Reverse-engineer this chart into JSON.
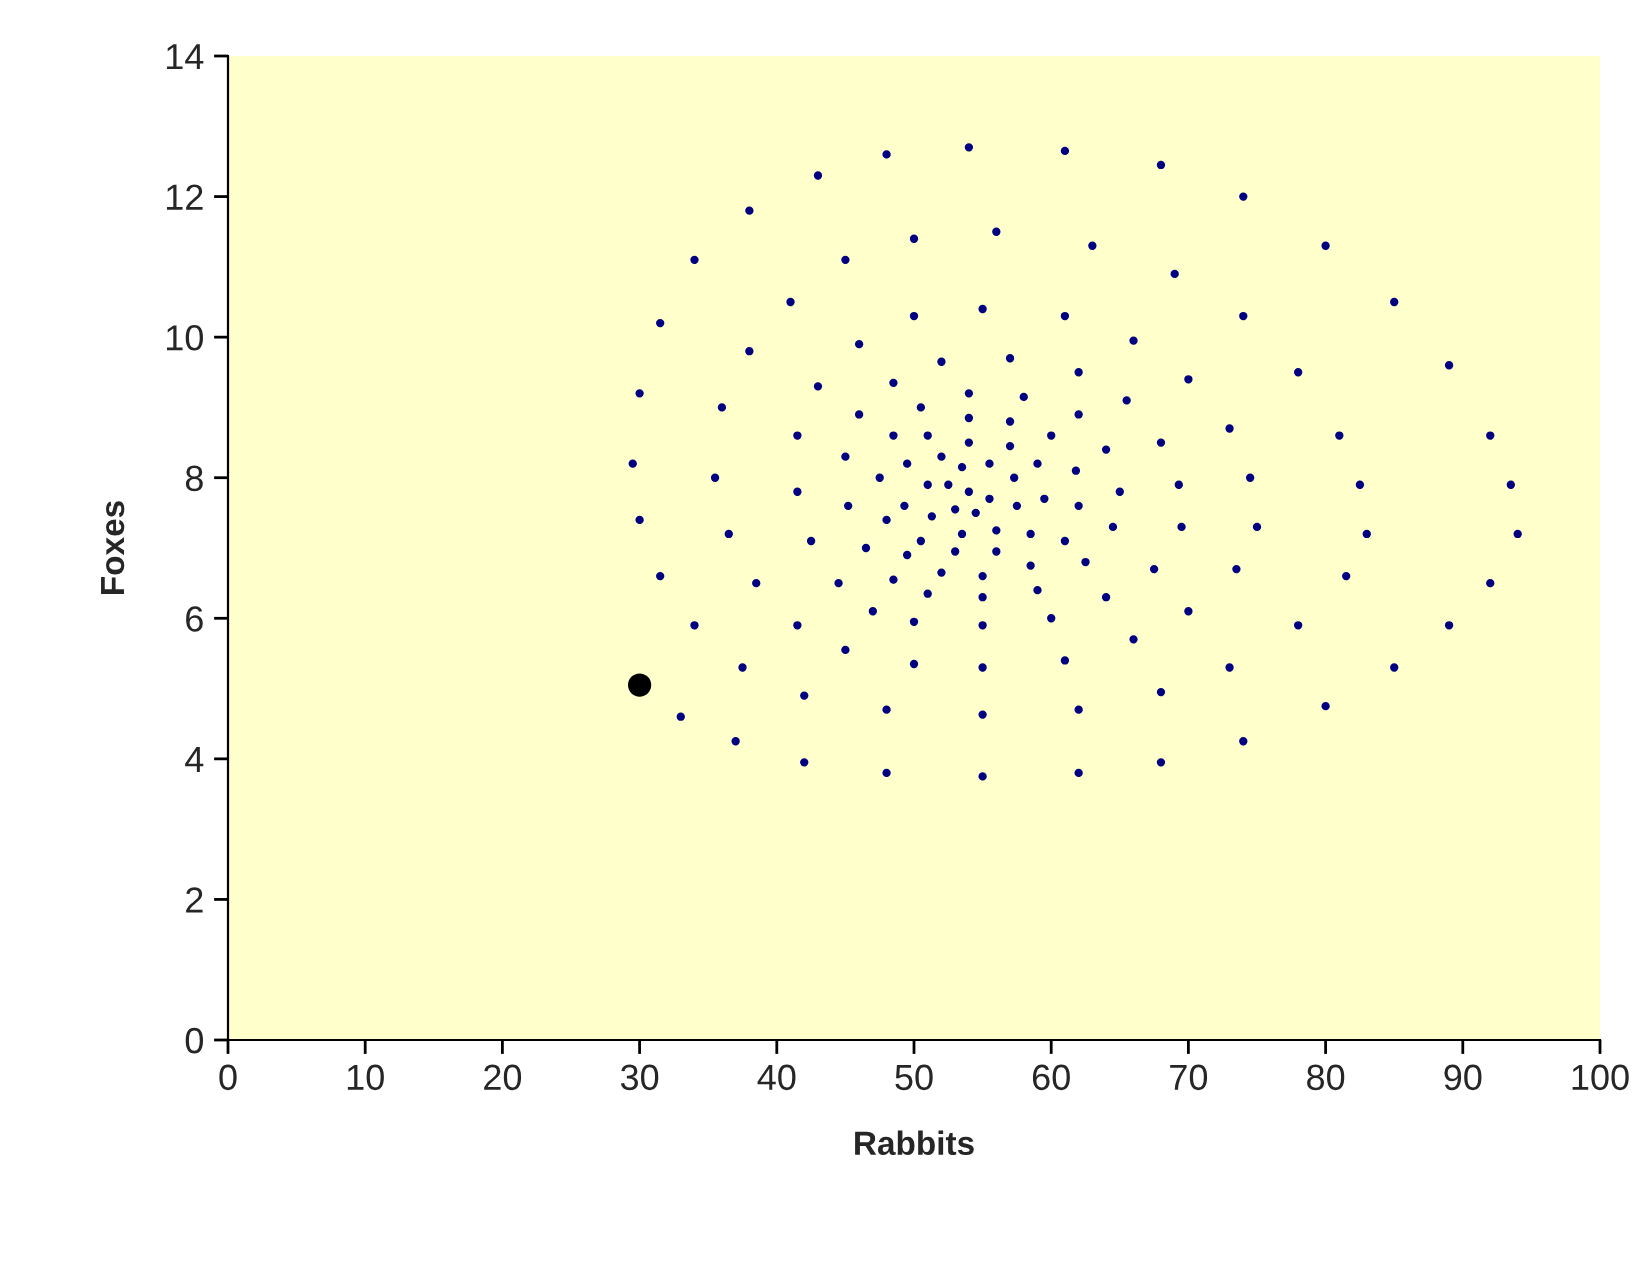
{
  "chart_data": {
    "type": "scatter",
    "xlabel": "Rabbits",
    "ylabel": "Foxes",
    "xlim": [
      0,
      100
    ],
    "xticks": [
      0,
      10,
      20,
      30,
      40,
      50,
      60,
      70,
      80,
      90,
      100
    ],
    "ylim": [
      0,
      14
    ],
    "yticks": [
      0,
      2,
      4,
      6,
      8,
      10,
      12,
      14
    ],
    "grid": false,
    "legend": false,
    "marker": "circle",
    "series": [
      {
        "color": "#000080",
        "x": [
          33,
          37,
          42,
          48,
          55,
          62,
          68,
          74,
          80,
          85,
          89,
          92,
          94,
          93.5,
          92,
          89,
          85,
          80,
          74,
          68,
          61,
          54,
          48,
          43,
          38,
          34,
          31.5,
          30,
          29.5,
          30,
          31.5,
          34,
          37.5,
          42,
          48,
          55,
          62,
          68,
          73,
          78,
          81.5,
          83,
          82.5,
          81,
          78,
          74,
          69,
          63,
          56,
          50,
          45,
          41,
          38,
          36,
          35.5,
          36.5,
          38.5,
          41.5,
          45,
          50,
          55,
          61,
          66,
          70,
          73.5,
          75,
          74.5,
          73,
          70,
          66,
          61,
          55,
          50,
          46,
          43,
          41.5,
          41.5,
          42.5,
          44.5,
          47,
          50,
          55,
          60,
          64,
          67.5,
          69.5,
          69.3,
          68,
          65.5,
          62,
          57,
          52,
          48.5,
          46,
          45,
          45.2,
          46.5,
          48.5,
          51,
          55,
          59,
          62.5,
          64.5,
          65,
          64,
          62,
          58,
          54,
          50.5,
          48.5,
          47.5,
          48,
          49.5,
          52,
          55,
          58.5,
          61,
          62,
          61.8,
          60,
          57,
          54,
          51,
          49.5,
          49.3,
          50.5,
          53,
          56,
          58.5,
          59.5,
          59,
          57,
          54,
          52,
          51,
          51.3,
          53.5,
          56,
          57.5,
          57.3,
          55.5,
          53.5,
          52.5,
          53,
          54.5,
          55.5,
          54
        ],
        "values": [
          4.6,
          4.25,
          3.95,
          3.8,
          3.75,
          3.8,
          3.95,
          4.25,
          4.75,
          5.3,
          5.9,
          6.5,
          7.2,
          7.9,
          8.6,
          9.6,
          10.5,
          11.3,
          12,
          12.45,
          12.65,
          12.7,
          12.6,
          12.3,
          11.8,
          11.1,
          10.2,
          9.2,
          8.2,
          7.4,
          6.6,
          5.9,
          5.3,
          4.9,
          4.7,
          4.63,
          4.7,
          4.95,
          5.3,
          5.9,
          6.6,
          7.2,
          7.9,
          8.6,
          9.5,
          10.3,
          10.9,
          11.3,
          11.5,
          11.4,
          11.1,
          10.5,
          9.8,
          9,
          8,
          7.2,
          6.5,
          5.9,
          5.55,
          5.35,
          5.3,
          5.4,
          5.7,
          6.1,
          6.7,
          7.3,
          8,
          8.7,
          9.4,
          9.95,
          10.3,
          10.4,
          10.3,
          9.9,
          9.3,
          8.6,
          7.8,
          7.1,
          6.5,
          6.1,
          5.95,
          5.9,
          6,
          6.3,
          6.7,
          7.3,
          7.9,
          8.5,
          9.1,
          9.5,
          9.7,
          9.65,
          9.35,
          8.9,
          8.3,
          7.6,
          7,
          6.55,
          6.35,
          6.3,
          6.4,
          6.8,
          7.3,
          7.8,
          8.4,
          8.9,
          9.15,
          9.2,
          9,
          8.6,
          8,
          7.4,
          6.9,
          6.65,
          6.6,
          6.75,
          7.1,
          7.6,
          8.1,
          8.6,
          8.8,
          8.85,
          8.6,
          8.2,
          7.6,
          7.1,
          6.95,
          6.95,
          7.2,
          7.7,
          8.2,
          8.45,
          8.5,
          8.3,
          7.9,
          7.45,
          7.2,
          7.25,
          7.6,
          8,
          8.2,
          8.15,
          7.9,
          7.55,
          7.5,
          7.7,
          7.8
        ]
      },
      {
        "color": "#000000",
        "x": [
          30
        ],
        "values": [
          5.05
        ]
      }
    ]
  }
}
